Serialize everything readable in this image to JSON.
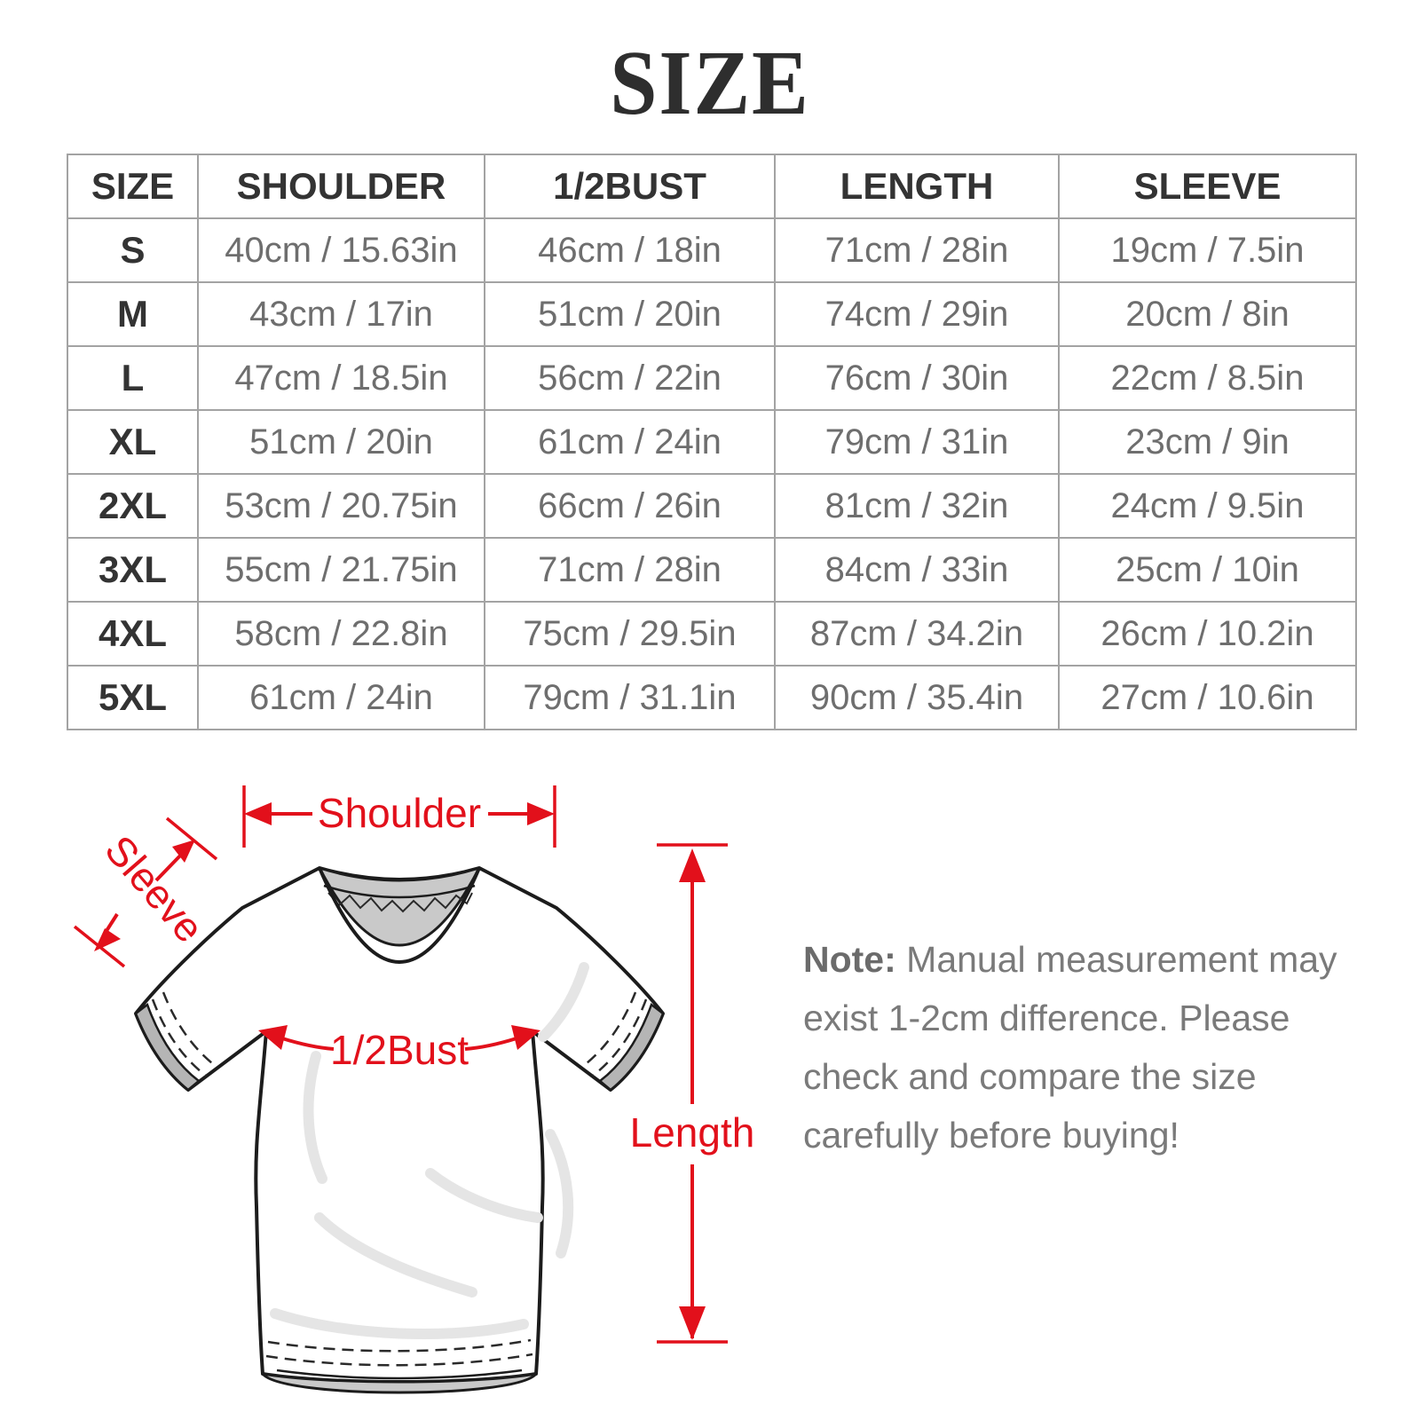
{
  "page": {
    "title": "SIZE"
  },
  "colors": {
    "accent": "#e2101b",
    "header_text": "#333333",
    "value_text": "#6e6e6e",
    "note_text": "#7a7a7a",
    "table_border": "#a3a3a3"
  },
  "table": {
    "headers": [
      "SIZE",
      "SHOULDER",
      "1/2BUST",
      "LENGTH",
      "SLEEVE"
    ],
    "rows": [
      [
        "S",
        "40cm / 15.63in",
        "46cm / 18in",
        "71cm / 28in",
        "19cm / 7.5in"
      ],
      [
        "M",
        "43cm / 17in",
        "51cm / 20in",
        "74cm / 29in",
        "20cm / 8in"
      ],
      [
        "L",
        "47cm / 18.5in",
        "56cm / 22in",
        "76cm / 30in",
        "22cm / 8.5in"
      ],
      [
        "XL",
        "51cm / 20in",
        "61cm / 24in",
        "79cm / 31in",
        "23cm / 9in"
      ],
      [
        "2XL",
        "53cm / 20.75in",
        "66cm / 26in",
        "81cm / 32in",
        "24cm / 9.5in"
      ],
      [
        "3XL",
        "55cm / 21.75in",
        "71cm / 28in",
        "84cm / 33in",
        "25cm / 10in"
      ],
      [
        "4XL",
        "58cm / 22.8in",
        "75cm / 29.5in",
        "87cm / 34.2in",
        "26cm / 10.2in"
      ],
      [
        "5XL",
        "61cm / 24in",
        "79cm / 31.1in",
        "90cm / 35.4in",
        "27cm / 10.6in"
      ]
    ]
  },
  "diagram": {
    "labels": {
      "shoulder": "Shoulder",
      "sleeve": "Sleeve",
      "bust": "1/2Bust",
      "length": "Length"
    }
  },
  "note": {
    "label": "Note:",
    "lines": [
      "Manual measurement may",
      "exist 1-2cm difference. Please",
      "check and compare the size",
      "carefully before buying!"
    ]
  }
}
